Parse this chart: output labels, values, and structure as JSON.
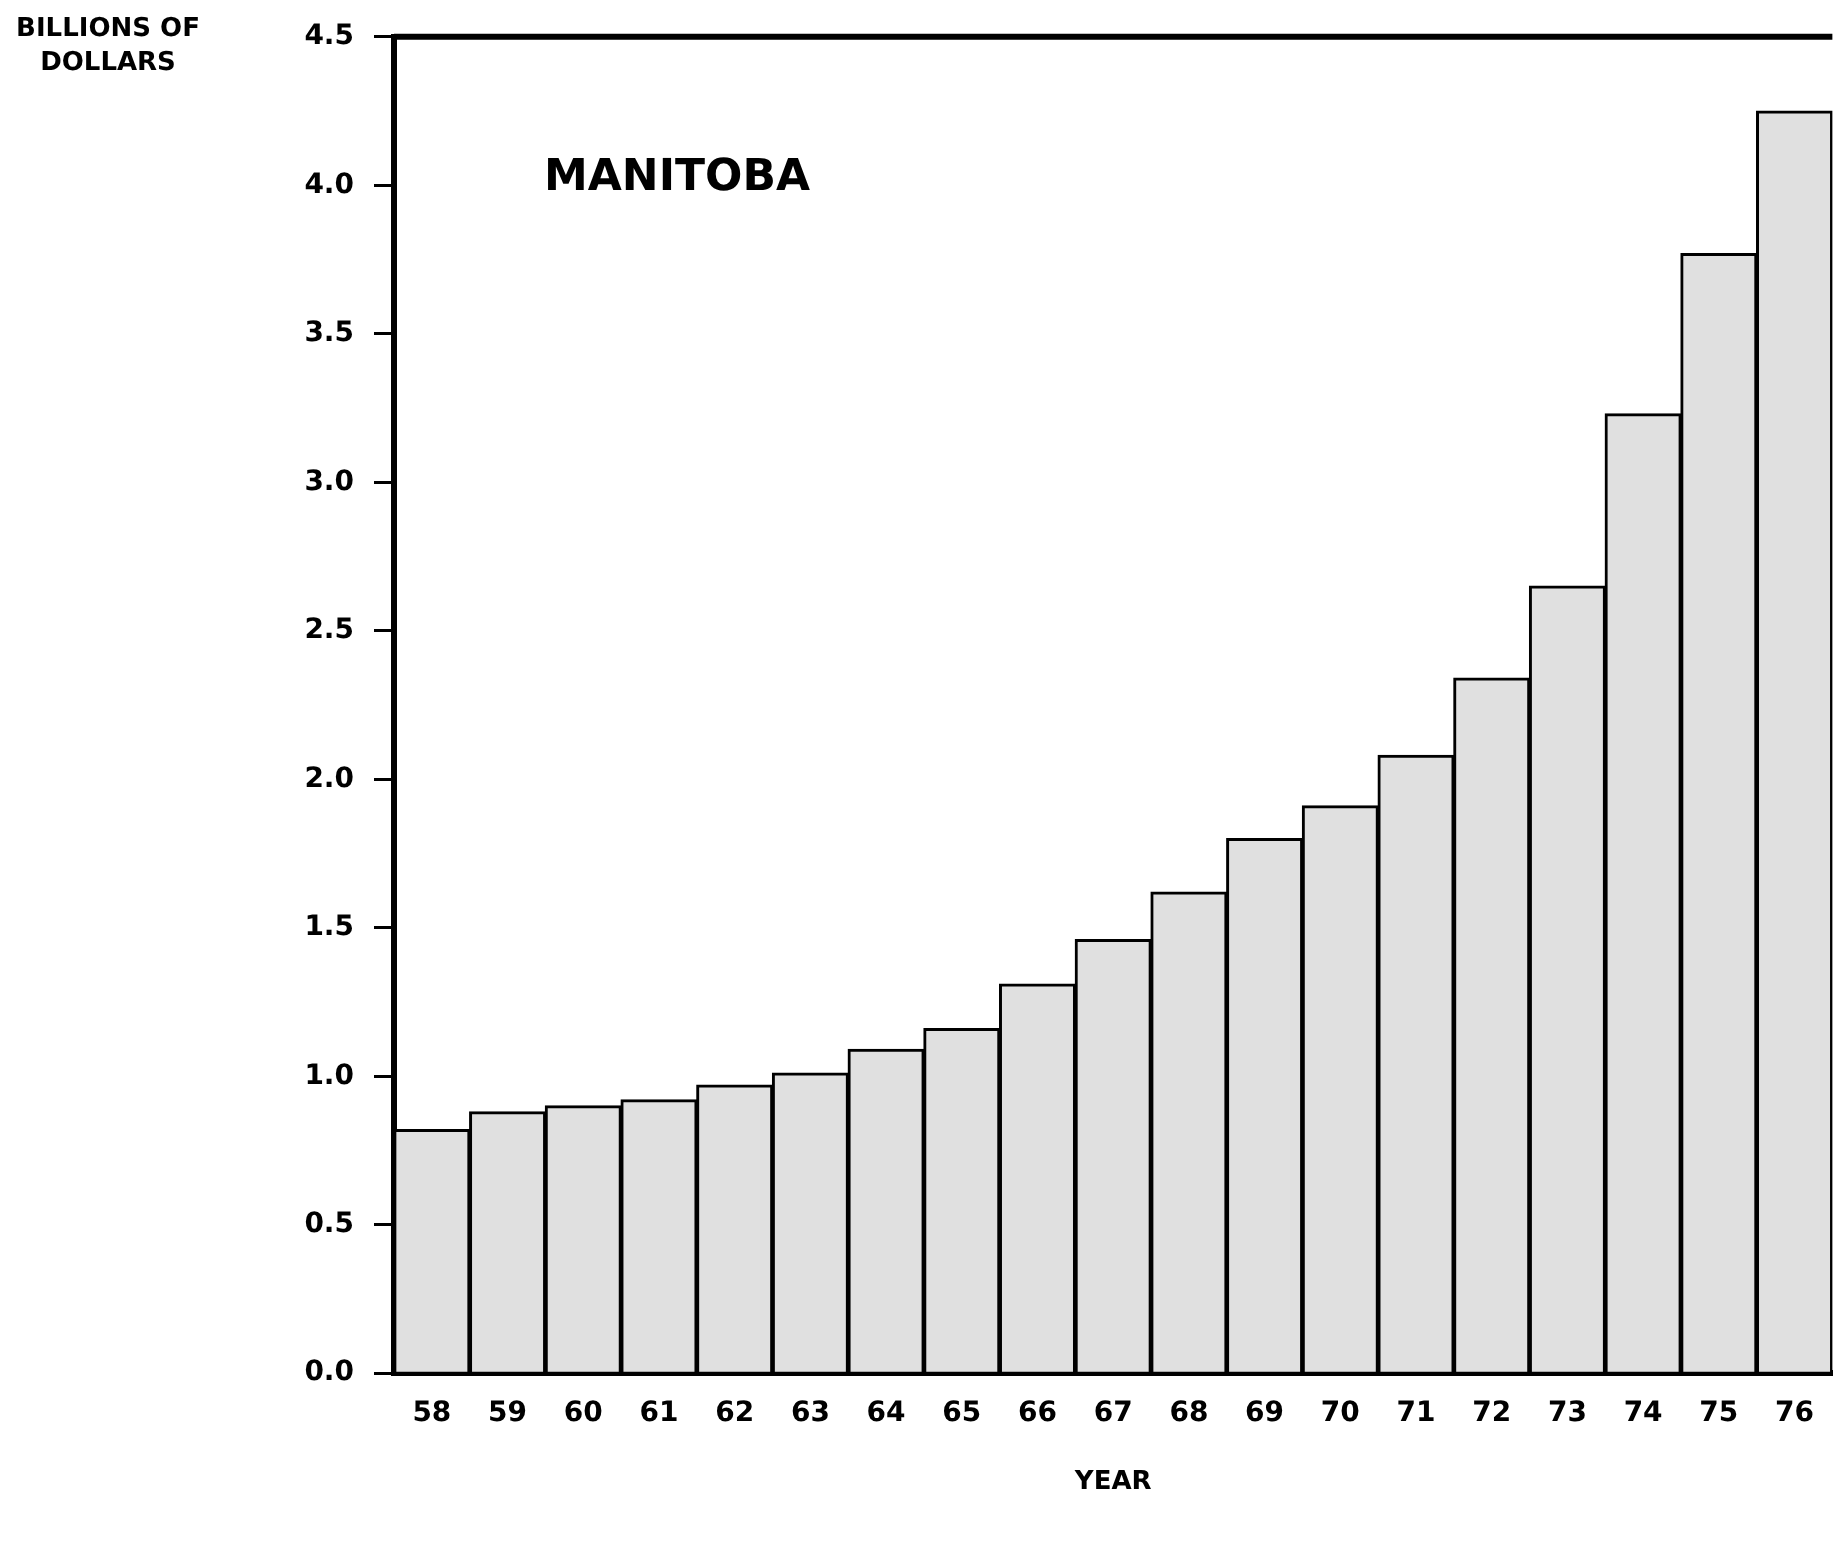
{
  "chart_data": {
    "type": "bar",
    "title": "MANITOBA",
    "xlabel": "YEAR",
    "ylabel": "BILLIONS OF DOLLARS",
    "categories": [
      "58",
      "59",
      "60",
      "61",
      "62",
      "63",
      "64",
      "65",
      "66",
      "67",
      "68",
      "69",
      "70",
      "71",
      "72",
      "73",
      "74",
      "75",
      "76"
    ],
    "values": [
      0.82,
      0.88,
      0.9,
      0.92,
      0.97,
      1.01,
      1.09,
      1.16,
      1.31,
      1.46,
      1.62,
      1.8,
      1.91,
      2.08,
      2.34,
      2.65,
      3.23,
      3.77,
      4.25
    ],
    "color": "#e0e0e0",
    "ylim": [
      0,
      4.5
    ],
    "yticks": [
      {
        "value": 0,
        "label": "0.0"
      },
      {
        "value": 0.5,
        "label": "0.5"
      },
      {
        "value": 1,
        "label": "1.0"
      },
      {
        "value": 1.5,
        "label": "1.5"
      },
      {
        "value": 2,
        "label": "2.0"
      },
      {
        "value": 2.5,
        "label": "2.5"
      },
      {
        "value": 3,
        "label": "3.0"
      },
      {
        "value": 3.5,
        "label": "3.5"
      },
      {
        "value": 4,
        "label": "4.0"
      },
      {
        "value": 4.5,
        "label": "4.5"
      }
    ],
    "grid": false,
    "legend": false
  }
}
